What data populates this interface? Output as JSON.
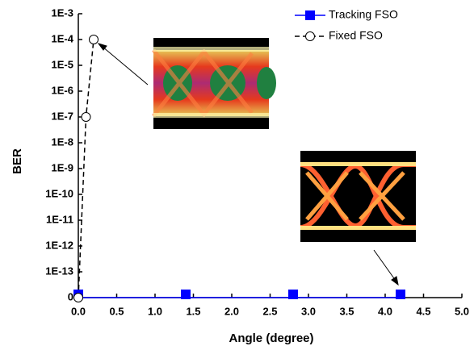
{
  "chart_data": {
    "type": "line",
    "x_label": "Angle (degree)",
    "y_label": "BER",
    "log_y": true,
    "xlim": [
      0,
      5
    ],
    "ylim": [
      0,
      0.001
    ],
    "xticks": [
      {
        "value": 0,
        "label": "0.0"
      },
      {
        "value": 0.5,
        "label": "0.5"
      },
      {
        "value": 1,
        "label": "1.0"
      },
      {
        "value": 1.5,
        "label": "1.5"
      },
      {
        "value": 2,
        "label": "2.0"
      },
      {
        "value": 2.5,
        "label": "2.5"
      },
      {
        "value": 3,
        "label": "3.0"
      },
      {
        "value": 3.5,
        "label": "3.5"
      },
      {
        "value": 4,
        "label": "4.0"
      },
      {
        "value": 4.5,
        "label": "4.5"
      },
      {
        "value": 5,
        "label": "5.0"
      }
    ],
    "yticks": [
      0,
      {
        "value": 1e-13,
        "label": "1E-13"
      },
      {
        "value": 1e-12,
        "label": "1E-12"
      },
      {
        "value": 1e-11,
        "label": "1E-11"
      },
      {
        "value": 1e-10,
        "label": "1E-10"
      },
      {
        "value": 1e-09,
        "label": "1E-9"
      },
      {
        "value": 1e-08,
        "label": "1E-8"
      },
      {
        "value": 1e-07,
        "label": "1E-7"
      },
      {
        "value": 1e-06,
        "label": "1E-6"
      },
      {
        "value": 1e-05,
        "label": "1E-5"
      },
      {
        "value": 0.0001,
        "label": "1E-4"
      },
      {
        "value": 0.001,
        "label": "1E-3"
      }
    ],
    "legend": "top-right",
    "series": [
      {
        "name": "Tracking FSO",
        "color": "#0000ff",
        "marker": "square",
        "dash": false,
        "x": [
          0,
          1.4,
          2.8,
          4.2
        ],
        "values": [
          0,
          0,
          0,
          0
        ]
      },
      {
        "name": "Fixed FSO",
        "color": "#000000",
        "marker": "circle",
        "dash": true,
        "x": [
          0,
          0.1,
          0.2
        ],
        "values": [
          0,
          1e-07,
          0.0001
        ]
      }
    ]
  }
}
